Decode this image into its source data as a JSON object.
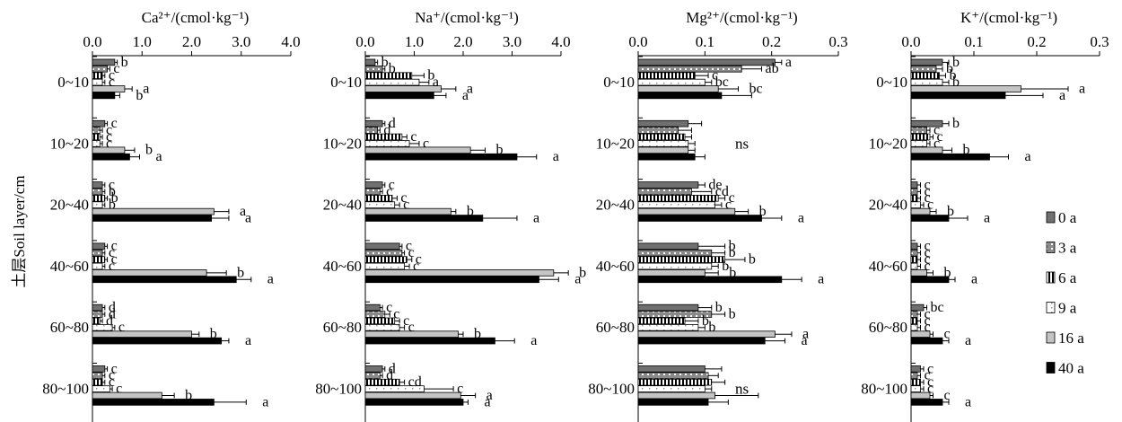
{
  "y_axis_label": "土层Soil layer/cm",
  "layers": [
    "0~10",
    "10~20",
    "20~40",
    "40~60",
    "60~80",
    "80~100"
  ],
  "legend": [
    {
      "label": "0 a",
      "pattern": "dark"
    },
    {
      "label": "3 a",
      "pattern": "dots"
    },
    {
      "label": "6 a",
      "pattern": "vlines"
    },
    {
      "label": "9 a",
      "pattern": "light"
    },
    {
      "label": "16 a",
      "pattern": "gray"
    },
    {
      "label": "40 a",
      "pattern": "black"
    }
  ],
  "chart_data": [
    {
      "type": "bar",
      "orientation": "horizontal",
      "title": "Ca²⁺/(cmol·kg⁻¹)",
      "xlim": [
        0,
        4.0
      ],
      "ticks": [
        "0.0",
        "1.0",
        "2.0",
        "3.0",
        "4.0"
      ],
      "categories": [
        "0~10",
        "10~20",
        "20~40",
        "40~60",
        "60~80",
        "80~100"
      ],
      "series": [
        {
          "name": "0 a",
          "values": [
            0.45,
            0.25,
            0.2,
            0.25,
            0.2,
            0.25
          ],
          "errors": [
            0.05,
            0.05,
            0.05,
            0.05,
            0.05,
            0.05
          ]
        },
        {
          "name": "3 a",
          "values": [
            0.3,
            0.15,
            0.2,
            0.2,
            0.2,
            0.2
          ],
          "errors": [
            0.05,
            0.05,
            0.05,
            0.05,
            0.05,
            0.05
          ]
        },
        {
          "name": "6 a",
          "values": [
            0.2,
            0.15,
            0.25,
            0.25,
            0.15,
            0.2
          ],
          "errors": [
            0.05,
            0.05,
            0.05,
            0.05,
            0.05,
            0.05
          ]
        },
        {
          "name": "9 a",
          "values": [
            0.2,
            0.15,
            0.2,
            0.2,
            0.4,
            0.35
          ],
          "errors": [
            0.05,
            0.05,
            0.05,
            0.05,
            0.05,
            0.05
          ]
        },
        {
          "name": "16 a",
          "values": [
            0.65,
            0.65,
            2.45,
            2.3,
            2.0,
            1.4
          ],
          "errors": [
            0.15,
            0.2,
            0.3,
            0.4,
            0.15,
            0.25
          ]
        },
        {
          "name": "40 a",
          "values": [
            0.45,
            0.75,
            2.4,
            2.9,
            2.6,
            2.45
          ],
          "errors": [
            0.1,
            0.2,
            0.35,
            0.3,
            0.15,
            0.65
          ]
        }
      ],
      "letters": [
        [
          "b",
          "c",
          "c",
          "c",
          "d",
          "c"
        ],
        [
          "c",
          "c",
          "b",
          "c",
          "d",
          "c"
        ],
        [
          "c",
          "c",
          "b",
          "c",
          "d",
          "c"
        ],
        [
          "c",
          "c",
          "b",
          "c",
          "c",
          "c"
        ],
        [
          "a",
          "b",
          "a",
          "b",
          "b",
          "b"
        ],
        [
          "b",
          "a",
          "a",
          "a",
          "a",
          "a"
        ]
      ]
    },
    {
      "type": "bar",
      "orientation": "horizontal",
      "title": "Na⁺/(cmol·kg⁻¹)",
      "xlim": [
        0,
        4.0
      ],
      "ticks": [
        "0.0",
        "1.0",
        "2.0",
        "3.0",
        "4.0"
      ],
      "categories": [
        "0~10",
        "10~20",
        "20~40",
        "40~60",
        "60~80",
        "80~100"
      ],
      "series": [
        {
          "name": "0 a",
          "values": [
            0.2,
            0.35,
            0.35,
            0.7,
            0.3,
            0.35
          ],
          "errors": [
            0.05,
            0.05,
            0.05,
            0.05,
            0.05,
            0.05
          ]
        },
        {
          "name": "3 a",
          "values": [
            0.35,
            0.25,
            0.3,
            0.75,
            0.4,
            0.3
          ],
          "errors": [
            0.05,
            0.05,
            0.05,
            0.05,
            0.1,
            0.05
          ]
        },
        {
          "name": "6 a",
          "values": [
            0.95,
            0.75,
            0.55,
            0.85,
            0.6,
            0.7
          ],
          "errors": [
            0.25,
            0.1,
            0.1,
            0.1,
            0.1,
            0.1
          ]
        },
        {
          "name": "9 a",
          "values": [
            1.1,
            0.9,
            0.6,
            0.8,
            0.7,
            1.2
          ],
          "errors": [
            0.2,
            0.2,
            0.1,
            0.1,
            0.1,
            0.6
          ]
        },
        {
          "name": "16 a",
          "values": [
            1.55,
            2.15,
            1.75,
            3.85,
            1.9,
            1.95
          ],
          "errors": [
            0.3,
            0.3,
            0.1,
            0.3,
            0.1,
            0.3
          ]
        },
        {
          "name": "40 a",
          "values": [
            1.4,
            3.1,
            2.4,
            3.55,
            2.65,
            2.0
          ],
          "errors": [
            0.25,
            0.4,
            0.7,
            0.4,
            0.4,
            0.1
          ]
        }
      ],
      "letters": [
        [
          "b",
          "d",
          "c",
          "c",
          "c",
          "d"
        ],
        [
          "b",
          "d",
          "c",
          "c",
          "c",
          "d"
        ],
        [
          "b",
          "c",
          "c",
          "c",
          "c",
          "cd"
        ],
        [
          "a",
          "c",
          "c",
          "c",
          "c",
          "c"
        ],
        [
          "a",
          "b",
          "b",
          "b",
          "b",
          "a"
        ],
        [
          "a",
          "a",
          "a",
          "a",
          "a",
          "a"
        ]
      ]
    },
    {
      "type": "bar",
      "orientation": "horizontal",
      "title": "Mg²⁺/(cmol·kg⁻¹)",
      "xlim": [
        0,
        0.3
      ],
      "ticks": [
        "0.0",
        "0.1",
        "0.2",
        "0.3"
      ],
      "categories": [
        "0~10",
        "10~20",
        "20~40",
        "40~60",
        "60~80",
        "80~100"
      ],
      "series": [
        {
          "name": "0 a",
          "values": [
            0.205,
            0.075,
            0.09,
            0.09,
            0.09,
            0.1
          ],
          "errors": [
            0.01,
            0.02,
            0.01,
            0.04,
            0.02,
            0.025
          ]
        },
        {
          "name": "3 a",
          "values": [
            0.155,
            0.06,
            0.08,
            0.11,
            0.11,
            0.105
          ],
          "errors": [
            0.03,
            0.02,
            0.03,
            0.02,
            0.02,
            0.015
          ]
        },
        {
          "name": "6 a",
          "values": [
            0.085,
            0.07,
            0.12,
            0.13,
            0.07,
            0.11
          ],
          "errors": [
            0.02,
            0.01,
            0.01,
            0.03,
            0.02,
            0.02
          ]
        },
        {
          "name": "9 a",
          "values": [
            0.1,
            0.075,
            0.115,
            0.11,
            0.09,
            0.1
          ],
          "errors": [
            0.01,
            0.01,
            0.01,
            0.01,
            0.01,
            0.01
          ]
        },
        {
          "name": "16 a",
          "values": [
            0.12,
            0.075,
            0.145,
            0.1,
            0.205,
            0.115
          ],
          "errors": [
            0.03,
            0.01,
            0.02,
            0.02,
            0.025,
            0.065
          ]
        },
        {
          "name": "40 a",
          "values": [
            0.125,
            0.085,
            0.185,
            0.215,
            0.19,
            0.105
          ],
          "errors": [
            0.045,
            0.015,
            0.03,
            0.03,
            0.03,
            0.03
          ]
        }
      ],
      "letters": [
        [
          "a",
          "",
          "de",
          "b",
          "b",
          ""
        ],
        [
          "ab",
          "",
          "cd",
          "b",
          "b",
          ""
        ],
        [
          "c",
          "",
          "c",
          "b",
          "b",
          ""
        ],
        [
          "bc",
          "",
          "c",
          "b",
          "b",
          ""
        ],
        [
          "bc",
          "",
          "b",
          "b",
          "a",
          ""
        ],
        [
          "",
          "",
          "a",
          "a",
          "a",
          ""
        ]
      ],
      "group_notes": [
        "",
        "ns",
        "",
        "",
        "",
        "ns"
      ]
    },
    {
      "type": "bar",
      "orientation": "horizontal",
      "title": "K⁺/(cmol·kg⁻¹)",
      "xlim": [
        0,
        0.3
      ],
      "ticks": [
        "0.0",
        "0.1",
        "0.2",
        "0.3"
      ],
      "categories": [
        "0~10",
        "10~20",
        "20~40",
        "40~60",
        "60~80",
        "80~100"
      ],
      "series": [
        {
          "name": "0 a",
          "values": [
            0.05,
            0.05,
            0.01,
            0.01,
            0.02,
            0.015
          ],
          "errors": [
            0.01,
            0.01,
            0.005,
            0.005,
            0.005,
            0.005
          ]
        },
        {
          "name": "3 a",
          "values": [
            0.04,
            0.025,
            0.01,
            0.01,
            0.01,
            0.01
          ],
          "errors": [
            0.01,
            0.005,
            0.005,
            0.005,
            0.005,
            0.005
          ]
        },
        {
          "name": "6 a",
          "values": [
            0.045,
            0.03,
            0.01,
            0.01,
            0.01,
            0.015
          ],
          "errors": [
            0.01,
            0.005,
            0.005,
            0.005,
            0.005,
            0.005
          ]
        },
        {
          "name": "9 a",
          "values": [
            0.05,
            0.025,
            0.015,
            0.01,
            0.01,
            0.015
          ],
          "errors": [
            0.01,
            0.005,
            0.005,
            0.005,
            0.005,
            0.005
          ]
        },
        {
          "name": "16 a",
          "values": [
            0.175,
            0.05,
            0.03,
            0.025,
            0.03,
            0.03
          ],
          "errors": [
            0.075,
            0.015,
            0.01,
            0.01,
            0.005,
            0.005
          ]
        },
        {
          "name": "40 a",
          "values": [
            0.15,
            0.125,
            0.06,
            0.06,
            0.05,
            0.05
          ],
          "errors": [
            0.06,
            0.03,
            0.03,
            0.01,
            0.01,
            0.01
          ]
        }
      ],
      "letters": [
        [
          "b",
          "b",
          "c",
          "c",
          "bc",
          "c"
        ],
        [
          "b",
          "c",
          "c",
          "c",
          "c",
          "c"
        ],
        [
          "b",
          "c",
          "c",
          "c",
          "c",
          "c"
        ],
        [
          "b",
          "c",
          "c",
          "c",
          "c",
          "c"
        ],
        [
          "a",
          "b",
          "b",
          "b",
          "c",
          "c"
        ],
        [
          "a",
          "a",
          "a",
          "a",
          "a",
          "a"
        ]
      ]
    }
  ]
}
